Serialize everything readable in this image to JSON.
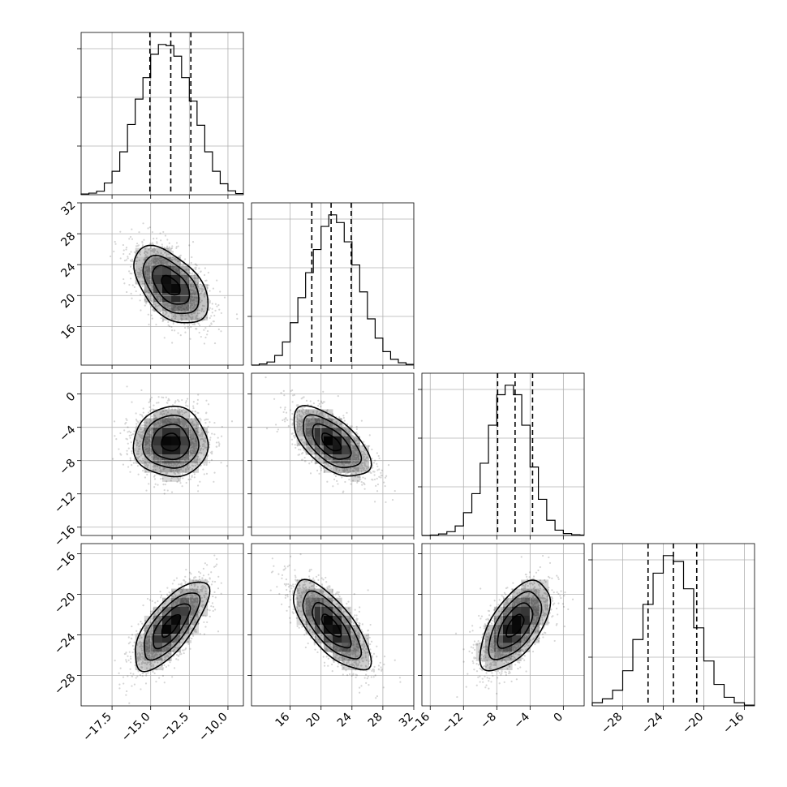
{
  "chart_data": {
    "type": "corner",
    "parameters": [
      {
        "range": [
          -19.5,
          -9.0
        ],
        "ticks": [
          -17.5,
          -15.0,
          -12.5,
          -10.0
        ],
        "tick_labels": [
          "−17.5",
          "−15.0",
          "−12.5",
          "−10.0"
        ],
        "mean": -13.7,
        "sd": 1.2,
        "quantiles": [
          -15.05,
          -13.7,
          -12.4
        ],
        "hist": {
          "edges": [
            -19.5,
            -19.0,
            -18.5,
            -18.0,
            -17.5,
            -17.0,
            -16.5,
            -16.0,
            -15.5,
            -15.0,
            -14.5,
            -14.0,
            -13.5,
            -13.0,
            -12.5,
            -12.0,
            -11.5,
            -11.0,
            -10.5,
            -10.0,
            -9.5,
            -9.0
          ],
          "counts": [
            2,
            4,
            9,
            30,
            60,
            110,
            180,
            245,
            300,
            360,
            385,
            382,
            355,
            300,
            240,
            178,
            110,
            60,
            28,
            10,
            3
          ]
        }
      },
      {
        "range": [
          11.0,
          32.0
        ],
        "ticks": [
          16,
          20,
          24,
          28,
          32
        ],
        "tick_labels": [
          "16",
          "20",
          "24",
          "28",
          "32"
        ],
        "mean": 21.3,
        "sd": 2.5,
        "quantiles": [
          18.8,
          21.3,
          23.9
        ],
        "hist": {
          "edges": [
            11,
            12,
            13,
            14,
            15,
            16,
            17,
            18,
            19,
            20,
            21,
            22,
            23,
            24,
            25,
            26,
            27,
            28,
            29,
            30,
            31,
            32
          ],
          "counts": [
            0,
            3,
            8,
            25,
            60,
            110,
            175,
            240,
            300,
            360,
            390,
            370,
            320,
            260,
            190,
            120,
            70,
            35,
            15,
            6,
            2
          ]
        }
      },
      {
        "range": [
          -17.0,
          2.5
        ],
        "ticks": [
          -16,
          -12,
          -8,
          -4,
          0
        ],
        "tick_labels": [
          "−16",
          "−12",
          "−8",
          "−4",
          "0"
        ],
        "mean": -5.8,
        "sd": 2.1,
        "quantiles": [
          -7.9,
          -5.8,
          -3.7
        ],
        "hist": {
          "edges": [
            -17.0,
            -16.0,
            -15.0,
            -14.0,
            -13.0,
            -12.0,
            -11.0,
            -10.0,
            -9.0,
            -8.0,
            -7.0,
            -6.0,
            -5.0,
            -4.0,
            -3.0,
            -2.0,
            -1.0,
            0.0,
            1.0,
            2.0,
            2.5
          ],
          "counts": [
            0,
            1,
            4,
            10,
            25,
            60,
            110,
            190,
            290,
            370,
            395,
            370,
            290,
            180,
            95,
            40,
            14,
            5,
            2,
            1
          ]
        }
      },
      {
        "range": [
          -31.0,
          -15.0
        ],
        "ticks": [
          -28,
          -24,
          -20,
          -16
        ],
        "tick_labels": [
          "−28",
          "−24",
          "−20",
          "−16"
        ],
        "mean": -23.1,
        "sd": 2.2,
        "quantiles": [
          -25.5,
          -23.0,
          -20.7
        ],
        "hist": {
          "edges": [
            -31,
            -30,
            -29,
            -28,
            -27,
            -26,
            -25,
            -24,
            -23,
            -22,
            -21,
            -20,
            -19,
            -18,
            -17,
            -16,
            -15
          ],
          "counts": [
            8,
            18,
            40,
            90,
            170,
            260,
            340,
            385,
            370,
            300,
            200,
            115,
            55,
            22,
            8,
            2
          ]
        }
      }
    ],
    "pairs": [
      {
        "x_param": 0,
        "y_param": 1,
        "center": [
          -13.7,
          21.3
        ],
        "correlation": -0.5
      },
      {
        "x_param": 0,
        "y_param": 2,
        "center": [
          -13.7,
          -5.8
        ],
        "correlation": 0.0
      },
      {
        "x_param": 1,
        "y_param": 2,
        "center": [
          21.3,
          -5.8
        ],
        "correlation": -0.6
      },
      {
        "x_param": 0,
        "y_param": 3,
        "center": [
          -13.7,
          -23.1
        ],
        "correlation": 0.72
      },
      {
        "x_param": 1,
        "y_param": 3,
        "center": [
          21.3,
          -23.1
        ],
        "correlation": -0.72
      },
      {
        "x_param": 2,
        "y_param": 3,
        "center": [
          -5.8,
          -23.1
        ],
        "correlation": 0.6
      }
    ],
    "contour_levels_sigma": [
      0.5,
      1.0,
      1.5,
      2.0
    ],
    "grid": true
  }
}
